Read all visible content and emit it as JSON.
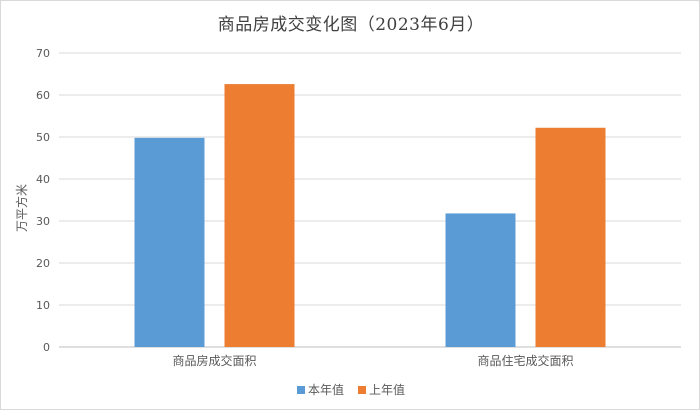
{
  "chart_data": {
    "type": "bar",
    "title": "商品房成交变化图（2023年6月）",
    "ylabel": "万平方米",
    "xlabel": "",
    "categories": [
      "商品房成交面积",
      "商品住宅成交面积"
    ],
    "series": [
      {
        "name": "本年值",
        "values": [
          49.8,
          31.8
        ],
        "color": "#5b9bd5"
      },
      {
        "name": "上年值",
        "values": [
          62.6,
          52.2
        ],
        "color": "#ed7d31"
      }
    ],
    "ylim": [
      0,
      70
    ],
    "yticks": [
      0,
      10,
      20,
      30,
      40,
      50,
      60,
      70
    ],
    "grid": true,
    "legend_position": "bottom"
  }
}
